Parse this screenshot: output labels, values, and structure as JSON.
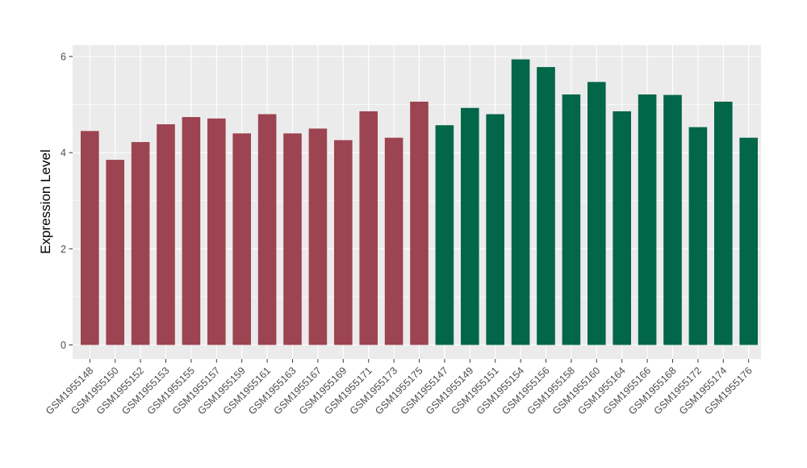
{
  "chart_data": {
    "type": "bar",
    "title": "",
    "xlabel": "",
    "ylabel": "Expression Level",
    "ylim": [
      0,
      6.55
    ],
    "yticks": [
      0,
      2,
      4,
      6
    ],
    "minor_yticks": [
      1,
      3,
      5
    ],
    "grid": true,
    "legend": false,
    "categories": [
      "GSM1955148",
      "GSM1955150",
      "GSM1955152",
      "GSM1955153",
      "GSM1955155",
      "GSM1955157",
      "GSM1955159",
      "GSM1955161",
      "GSM1955163",
      "GSM1955167",
      "GSM1955169",
      "GSM1955171",
      "GSM1955173",
      "GSM1955175",
      "GSM1955147",
      "GSM1955149",
      "GSM1955151",
      "GSM1955154",
      "GSM1955156",
      "GSM1955158",
      "GSM1955160",
      "GSM1955164",
      "GSM1955166",
      "GSM1955168",
      "GSM1955172",
      "GSM1955174",
      "GSM1955176"
    ],
    "values": [
      4.45,
      3.85,
      4.22,
      4.59,
      4.74,
      4.71,
      4.4,
      4.8,
      4.4,
      4.5,
      4.26,
      4.86,
      4.31,
      5.06,
      4.57,
      4.93,
      4.8,
      5.94,
      5.78,
      5.21,
      5.47,
      4.86,
      5.21,
      5.2,
      4.53,
      5.06,
      4.31
    ],
    "groups": [
      {
        "color": "#9C4451",
        "start": 0,
        "count": 14
      },
      {
        "color": "#026649",
        "start": 14,
        "count": 13
      }
    ]
  },
  "style": {
    "panel_bg": "#EBEBEB",
    "grid_color": "#FFFFFF",
    "axis_text_color": "#4D4D4D",
    "tick_mark_color": "#333333"
  }
}
